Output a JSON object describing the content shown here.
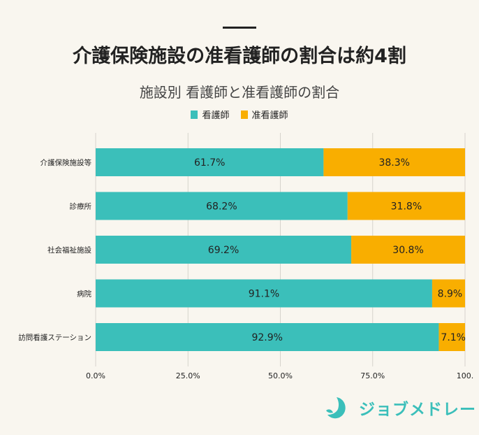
{
  "header": {
    "title": "介護保険施設の准看護師の割合は約4割",
    "subtitle": "施設別 看護師と准看護師の割合"
  },
  "logo": {
    "text": "ジョブメドレー"
  },
  "chart_data": {
    "type": "bar",
    "orientation": "horizontal",
    "stacked": true,
    "title": "施設別 看護師と准看護師の割合",
    "categories": [
      "介護保険施設等",
      "診療所",
      "社会福祉施設",
      "病院",
      "訪問看護ステーション"
    ],
    "series": [
      {
        "name": "看護師",
        "color": "#3bbfba",
        "values": [
          61.7,
          68.2,
          69.2,
          91.1,
          92.9
        ],
        "labels": [
          "61.7%",
          "68.2%",
          "69.2%",
          "91.1%",
          "92.9%"
        ]
      },
      {
        "name": "准看護師",
        "color": "#f9ae00",
        "values": [
          38.3,
          31.8,
          30.8,
          8.9,
          7.1
        ],
        "labels": [
          "38.3%",
          "31.8%",
          "30.8%",
          "8.9%",
          "7.1%"
        ]
      }
    ],
    "xlim": [
      0,
      100
    ],
    "xticks": [
      "0.0%",
      "25.0%",
      "50.0%",
      "75.0%",
      "100."
    ],
    "grid": true,
    "legend": "top-center"
  }
}
